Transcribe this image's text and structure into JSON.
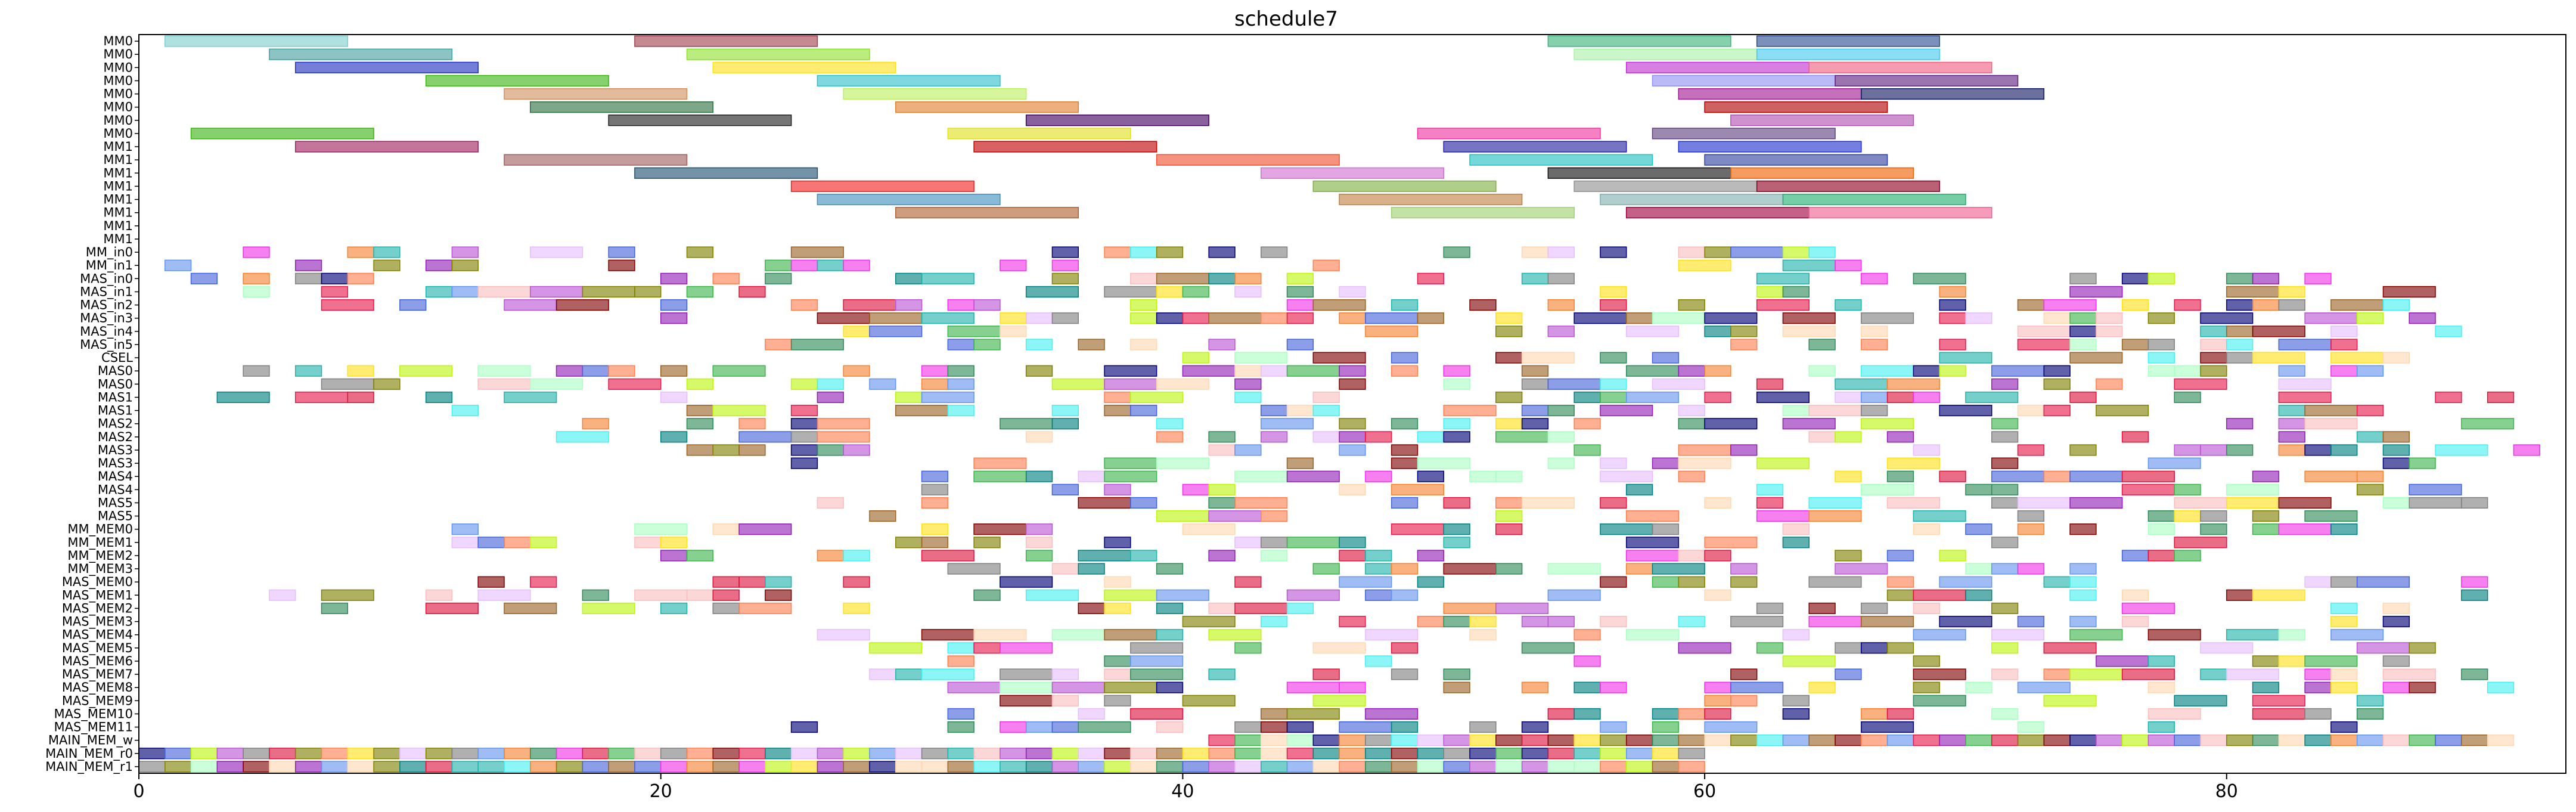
{
  "chart_data": {
    "type": "gantt",
    "title": "schedule7",
    "xlabel": "",
    "ylabel": "",
    "xlim": [
      0,
      93
    ],
    "x_ticks": [
      0,
      20,
      40,
      60,
      80
    ],
    "grid": false,
    "legend": "none",
    "rows": [
      "MM0",
      "MM0",
      "MM0",
      "MM0",
      "MM0",
      "MM0",
      "MM0",
      "MM0",
      "MM1",
      "MM1",
      "MM1",
      "MM1",
      "MM1",
      "MM1",
      "MM1",
      "MM1",
      "MM_in0",
      "MM_in1",
      "MAS_in0",
      "MAS_in1",
      "MAS_in2",
      "MAS_in3",
      "MAS_in4",
      "MAS_in5",
      "CSEL",
      "MAS0",
      "MAS0",
      "MAS1",
      "MAS1",
      "MAS2",
      "MAS2",
      "MAS3",
      "MAS3",
      "MAS4",
      "MAS4",
      "MAS5",
      "MAS5",
      "MM_MEM0",
      "MM_MEM1",
      "MM_MEM2",
      "MM_MEM3",
      "MAS_MEM0",
      "MAS_MEM1",
      "MAS_MEM2",
      "MAS_MEM3",
      "MAS_MEM4",
      "MAS_MEM5",
      "MAS_MEM6",
      "MAS_MEM7",
      "MAS_MEM8",
      "MAS_MEM9",
      "MAS_MEM10",
      "MAS_MEM11",
      "MAIN_MEM_w",
      "MAIN_MEM_r0",
      "MAIN_MEM_r1"
    ],
    "palette": [
      "#e6194b",
      "#3cb44b",
      "#4363d8",
      "#f58231",
      "#911eb4",
      "#46f0f0",
      "#f032e6",
      "#bcf60c",
      "#008080",
      "#9a6324",
      "#800000",
      "#808000",
      "#000075",
      "#808080",
      "#ffe119",
      "#aaffc3",
      "#ffd8b1",
      "#e6beff",
      "#fabebe",
      "#2e8b57",
      "#ff7f50",
      "#6495ed",
      "#dc143c",
      "#20b2aa",
      "#ba55d3"
    ],
    "seed": 7,
    "bars": [
      {
        "row": 0,
        "start": 1,
        "end": 8,
        "color": "#7fcfcf"
      },
      {
        "row": 0,
        "start": 19,
        "end": 26,
        "color": "#a0404e"
      },
      {
        "row": 0,
        "start": 54,
        "end": 61,
        "color": "#3cb47a"
      },
      {
        "row": 0,
        "start": 62,
        "end": 69,
        "color": "#2c4e8e"
      },
      {
        "row": 1,
        "start": 5,
        "end": 12,
        "color": "#46a0a0"
      },
      {
        "row": 1,
        "start": 21,
        "end": 28,
        "color": "#8fe030"
      },
      {
        "row": 1,
        "start": 55,
        "end": 62,
        "color": "#aaf0aa"
      },
      {
        "row": 1,
        "start": 62,
        "end": 69,
        "color": "#46c8f0"
      },
      {
        "row": 2,
        "start": 6,
        "end": 13,
        "color": "#2030c0"
      },
      {
        "row": 2,
        "start": 22,
        "end": 29,
        "color": "#ffe119"
      },
      {
        "row": 2,
        "start": 57,
        "end": 64,
        "color": "#c030d0"
      },
      {
        "row": 2,
        "start": 64,
        "end": 71,
        "color": "#f06080"
      },
      {
        "row": 3,
        "start": 11,
        "end": 18,
        "color": "#3cb414"
      },
      {
        "row": 3,
        "start": 26,
        "end": 33,
        "color": "#30c0c8"
      },
      {
        "row": 3,
        "start": 58,
        "end": 65,
        "color": "#9090f0"
      },
      {
        "row": 3,
        "start": 65,
        "end": 72,
        "color": "#602080"
      },
      {
        "row": 4,
        "start": 14,
        "end": 21,
        "color": "#d09060"
      },
      {
        "row": 4,
        "start": 27,
        "end": 34,
        "color": "#bcf060"
      },
      {
        "row": 4,
        "start": 59,
        "end": 66,
        "color": "#a01890"
      },
      {
        "row": 4,
        "start": 66,
        "end": 73,
        "color": "#101860"
      },
      {
        "row": 5,
        "start": 15,
        "end": 22,
        "color": "#2e7040"
      },
      {
        "row": 5,
        "start": 29,
        "end": 36,
        "color": "#e08030"
      },
      {
        "row": 5,
        "start": 60,
        "end": 67,
        "color": "#b00000"
      },
      {
        "row": 6,
        "start": 18,
        "end": 25,
        "color": "#202020"
      },
      {
        "row": 6,
        "start": 34,
        "end": 41,
        "color": "#400060"
      },
      {
        "row": 6,
        "start": 61,
        "end": 68,
        "color": "#b050b0"
      },
      {
        "row": 7,
        "start": 2,
        "end": 9,
        "color": "#3cb414"
      },
      {
        "row": 7,
        "start": 31,
        "end": 38,
        "color": "#e0e020"
      },
      {
        "row": 7,
        "start": 49,
        "end": 56,
        "color": "#f032a0"
      },
      {
        "row": 7,
        "start": 58,
        "end": 65,
        "color": "#604080"
      },
      {
        "row": 8,
        "start": 6,
        "end": 13,
        "color": "#a02060"
      },
      {
        "row": 8,
        "start": 32,
        "end": 39,
        "color": "#c00000"
      },
      {
        "row": 8,
        "start": 50,
        "end": 57,
        "color": "#2020a0"
      },
      {
        "row": 8,
        "start": 59,
        "end": 66,
        "color": "#2030d0"
      },
      {
        "row": 9,
        "start": 14,
        "end": 21,
        "color": "#a06060"
      },
      {
        "row": 9,
        "start": 39,
        "end": 46,
        "color": "#f05030"
      },
      {
        "row": 9,
        "start": 51,
        "end": 58,
        "color": "#20c0c0"
      },
      {
        "row": 9,
        "start": 60,
        "end": 67,
        "color": "#3040a0"
      },
      {
        "row": 10,
        "start": 19,
        "end": 26,
        "color": "#205070"
      },
      {
        "row": 10,
        "start": 43,
        "end": 50,
        "color": "#d070d0"
      },
      {
        "row": 10,
        "start": 54,
        "end": 61,
        "color": "#101010"
      },
      {
        "row": 10,
        "start": 61,
        "end": 68,
        "color": "#f06000"
      },
      {
        "row": 11,
        "start": 25,
        "end": 32,
        "color": "#f02020"
      },
      {
        "row": 11,
        "start": 45,
        "end": 52,
        "color": "#80b040"
      },
      {
        "row": 11,
        "start": 55,
        "end": 62,
        "color": "#909090"
      },
      {
        "row": 11,
        "start": 62,
        "end": 69,
        "color": "#900020"
      },
      {
        "row": 12,
        "start": 26,
        "end": 33,
        "color": "#4090c0"
      },
      {
        "row": 12,
        "start": 46,
        "end": 53,
        "color": "#c08040"
      },
      {
        "row": 12,
        "start": 56,
        "end": 63,
        "color": "#80b0b0"
      },
      {
        "row": 12,
        "start": 63,
        "end": 70,
        "color": "#20b070"
      },
      {
        "row": 13,
        "start": 29,
        "end": 36,
        "color": "#b06030"
      },
      {
        "row": 13,
        "start": 48,
        "end": 55,
        "color": "#a0d070"
      },
      {
        "row": 13,
        "start": 57,
        "end": 64,
        "color": "#a00040"
      },
      {
        "row": 13,
        "start": 64,
        "end": 71,
        "color": "#f06090"
      }
    ]
  }
}
